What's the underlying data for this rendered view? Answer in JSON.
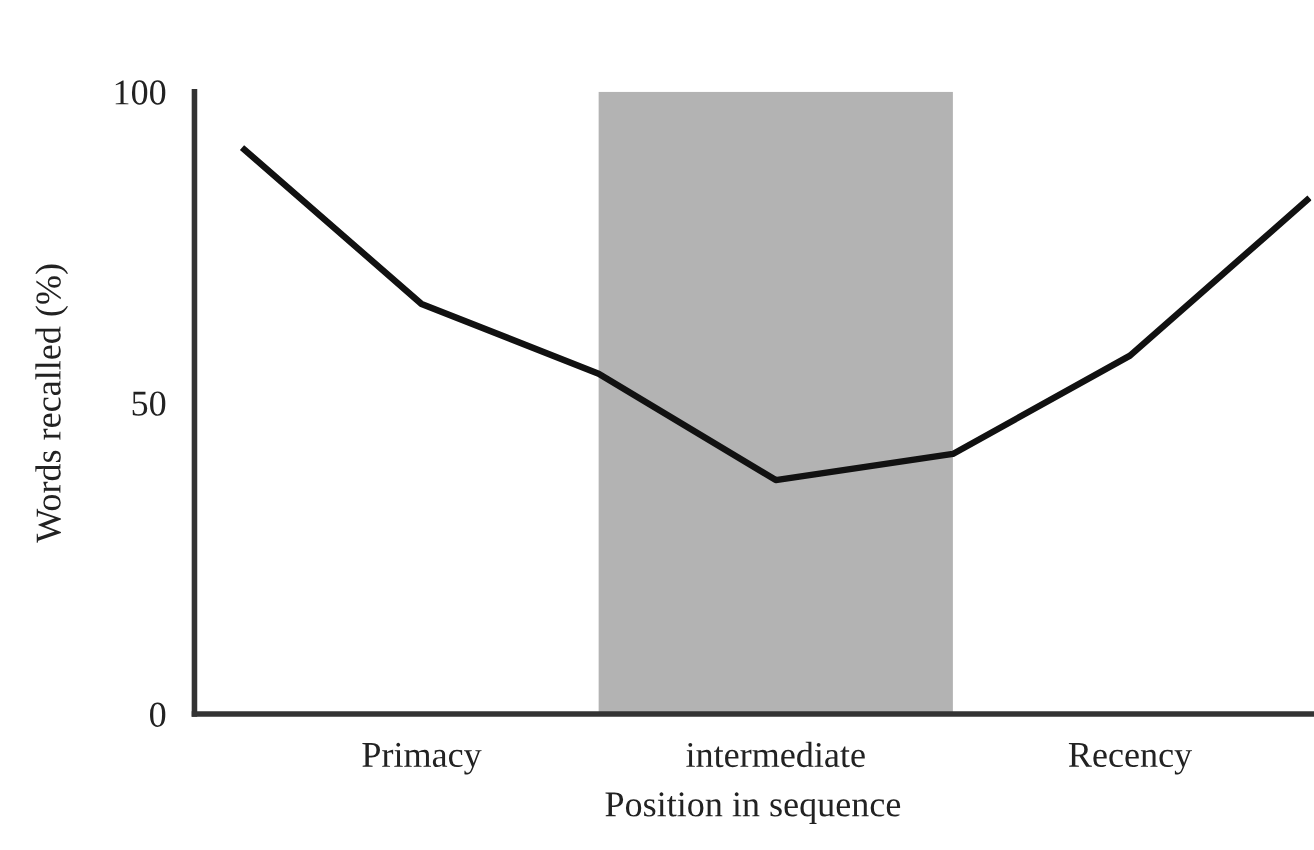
{
  "chart_data": {
    "type": "line",
    "xlabel": "Position in sequence",
    "ylabel": "Words recalled (%)",
    "categories": [
      null,
      "Primacy",
      null,
      "intermediate",
      null,
      "Recency",
      null
    ],
    "series": [
      {
        "color": "#111111",
        "values": [
          90.7,
          65.9,
          54.7,
          37.6,
          41.8,
          57.6,
          82.6
        ]
      }
    ],
    "ylim": [
      0,
      100
    ],
    "yticks": [
      0,
      50,
      100
    ],
    "grid": false,
    "legend": false,
    "marker": "none",
    "line_style": "solid"
  }
}
